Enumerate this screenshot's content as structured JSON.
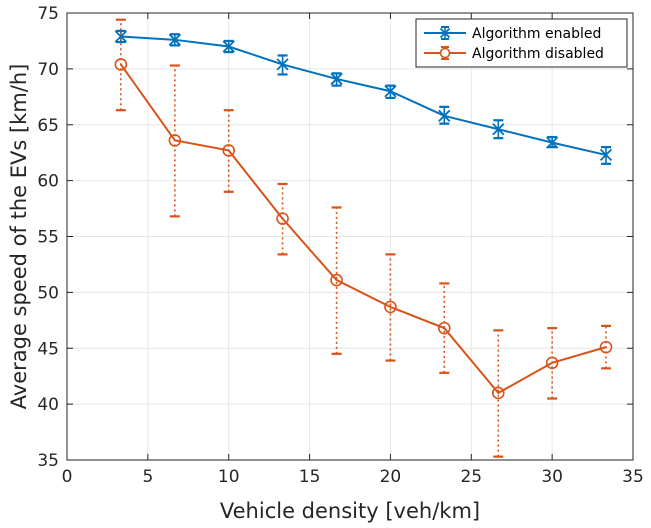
{
  "chart_data": {
    "type": "line",
    "title": "",
    "xlabel": "Vehicle density [veh/km]",
    "ylabel": "Average speed of the EVs [km/h]",
    "xlim": [
      0,
      35
    ],
    "ylim": [
      35,
      75
    ],
    "xticks": [
      0,
      5,
      10,
      15,
      20,
      25,
      30,
      35
    ],
    "yticks": [
      35,
      40,
      45,
      50,
      55,
      60,
      65,
      70,
      75
    ],
    "grid": true,
    "legend_position": "top-right",
    "x": [
      3.33,
      6.67,
      10,
      13.33,
      16.67,
      20,
      23.33,
      26.67,
      30,
      33.33
    ],
    "series": [
      {
        "name": "Algorithm enabled",
        "color": "#0072BD",
        "marker": "x",
        "values": [
          72.9,
          72.6,
          72.0,
          70.4,
          69.1,
          68.0,
          65.8,
          64.6,
          63.4,
          62.3
        ],
        "error_low": [
          72.4,
          72.1,
          71.5,
          69.5,
          68.5,
          67.4,
          65.1,
          63.8,
          63.0,
          61.5
        ],
        "error_high": [
          73.4,
          73.1,
          72.5,
          71.2,
          69.6,
          68.5,
          66.6,
          65.4,
          63.9,
          63.0
        ]
      },
      {
        "name": "Algorithm disabled",
        "color": "#D95319",
        "marker": "o",
        "values": [
          70.4,
          63.6,
          62.7,
          56.6,
          51.1,
          48.7,
          46.8,
          41.0,
          43.7,
          45.1
        ],
        "error_low": [
          66.3,
          56.8,
          59.0,
          53.4,
          44.5,
          43.9,
          42.8,
          35.3,
          40.5,
          43.2
        ],
        "error_high": [
          74.4,
          70.3,
          66.3,
          59.7,
          57.6,
          53.4,
          50.8,
          46.6,
          46.8,
          47.0
        ]
      }
    ]
  }
}
